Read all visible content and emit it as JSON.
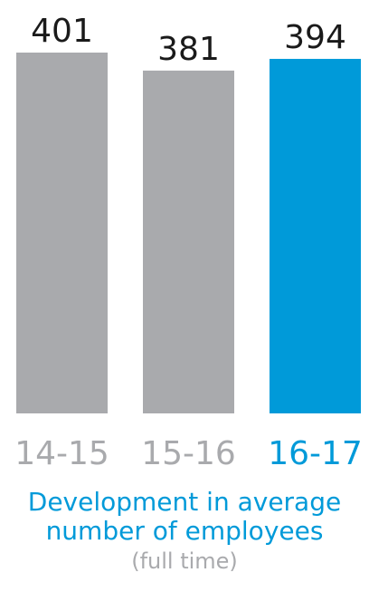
{
  "chart_data": {
    "type": "bar",
    "categories": [
      "14-15",
      "15-16",
      "16-17"
    ],
    "values": [
      401,
      381,
      394
    ],
    "ylim": [
      0,
      401
    ],
    "grid": false,
    "bar_colors": [
      "#a9aaad",
      "#a9aaad",
      "#009ad9"
    ],
    "category_label_colors": [
      "#a9aaad",
      "#a9aaad",
      "#009ad9"
    ],
    "value_label_color": "#1a1a1a"
  },
  "caption": {
    "line1": "Development in average",
    "line2": "number of employees",
    "line3": "(full time)"
  }
}
